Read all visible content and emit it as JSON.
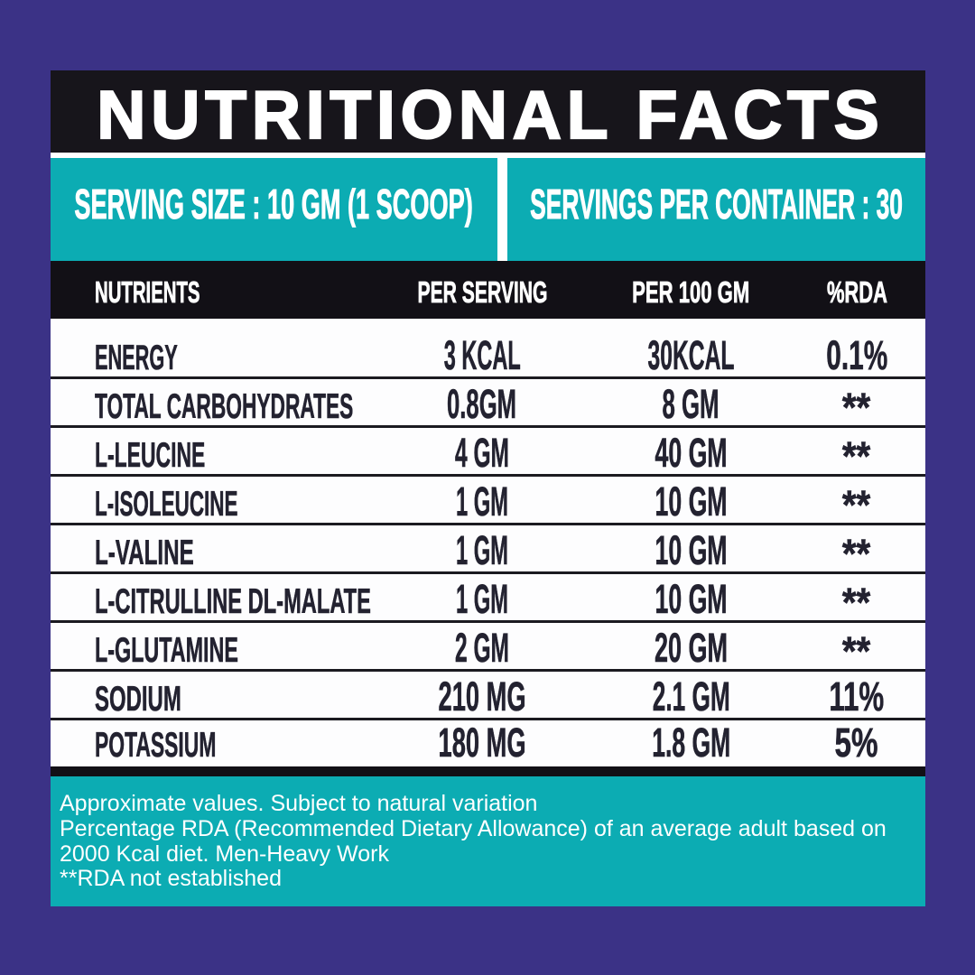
{
  "colors": {
    "page_background": "#3B3286",
    "teal": "#0CACB3",
    "bar_black": "#17151B",
    "table_text": "#232230",
    "white": "#FFFFFF"
  },
  "title": "NUTRITIONAL FACTS",
  "serving": {
    "size_label": "SERVING SIZE : 10 GM (1 SCOOP)",
    "per_container_label": "SERVINGS PER CONTAINER : 30"
  },
  "table": {
    "columns": [
      "NUTRIENTS",
      "PER SERVING",
      "PER 100 GM",
      "%RDA"
    ],
    "rows": [
      {
        "nutrient": "ENERGY",
        "per_serving": "3 KCAL",
        "per_100gm": "30KCAL",
        "rda": "0.1%"
      },
      {
        "nutrient": "TOTAL CARBOHYDRATES",
        "per_serving": "0.8GM",
        "per_100gm": "8 GM",
        "rda": "**"
      },
      {
        "nutrient": "L-LEUCINE",
        "per_serving": "4 GM",
        "per_100gm": "40 GM",
        "rda": "**"
      },
      {
        "nutrient": "L-ISOLEUCINE",
        "per_serving": "1 GM",
        "per_100gm": "10 GM",
        "rda": "**"
      },
      {
        "nutrient": "L-VALINE",
        "per_serving": "1 GM",
        "per_100gm": "10 GM",
        "rda": "**"
      },
      {
        "nutrient": "L-CITRULLINE DL-MALATE",
        "per_serving": "1 GM",
        "per_100gm": "10 GM",
        "rda": "**"
      },
      {
        "nutrient": "L-GLUTAMINE",
        "per_serving": "2 GM",
        "per_100gm": "20 GM",
        "rda": "**"
      },
      {
        "nutrient": "SODIUM",
        "per_serving": "210 MG",
        "per_100gm": "2.1 GM",
        "rda": "11%"
      },
      {
        "nutrient": "POTASSIUM",
        "per_serving": "180 MG",
        "per_100gm": "1.8 GM",
        "rda": "5%"
      }
    ]
  },
  "footnotes": {
    "lines": [
      "Approximate values. Subject to natural variation",
      "Percentage RDA (Recommended Dietary Allowance) of an average adult based on",
      "2000 Kcal diet. Men-Heavy Work",
      "**RDA not established"
    ]
  },
  "chart_data": {
    "type": "table",
    "title": "NUTRITIONAL FACTS",
    "columns": [
      "NUTRIENTS",
      "PER SERVING",
      "PER 100 GM",
      "%RDA"
    ],
    "rows": [
      [
        "ENERGY",
        "3 KCAL",
        "30KCAL",
        "0.1%"
      ],
      [
        "TOTAL CARBOHYDRATES",
        "0.8GM",
        "8 GM",
        "**"
      ],
      [
        "L-LEUCINE",
        "4 GM",
        "40 GM",
        "**"
      ],
      [
        "L-ISOLEUCINE",
        "1 GM",
        "10 GM",
        "**"
      ],
      [
        "L-VALINE",
        "1 GM",
        "10 GM",
        "**"
      ],
      [
        "L-CITRULLINE DL-MALATE",
        "1 GM",
        "10 GM",
        "**"
      ],
      [
        "L-GLUTAMINE",
        "2 GM",
        "20 GM",
        "**"
      ],
      [
        "SODIUM",
        "210 MG",
        "2.1 GM",
        "11%"
      ],
      [
        "POTASSIUM",
        "180 MG",
        "1.8 GM",
        "5%"
      ]
    ]
  }
}
